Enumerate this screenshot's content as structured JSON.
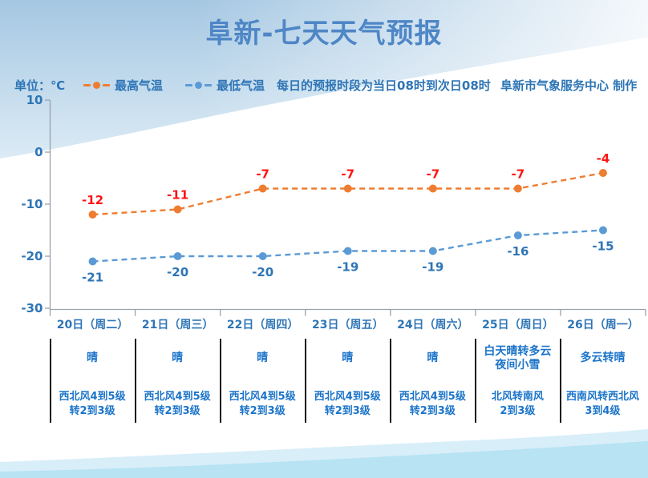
{
  "title": "阜新-七天天气预报",
  "header": {
    "unit_label": "单位：℃",
    "period_note": "每日的预报时段为当日08时到次日08时",
    "credit": "阜新市气象服务中心 制作"
  },
  "chart_data": {
    "type": "line",
    "title": "阜新-七天天气预报",
    "ylabel": "单位：℃",
    "ylim": [
      -30,
      10
    ],
    "yticks": [
      10,
      0,
      -10,
      -20,
      -30
    ],
    "grid": false,
    "line_style": "dashed",
    "legend_position": "top-left",
    "categories": [
      "20日（周二）",
      "21日（周三）",
      "22日（周四）",
      "23日（周五）",
      "24日（周六）",
      "25日（周日）",
      "26日（周一）"
    ],
    "series": [
      {
        "name": "最高气温",
        "color": "#ED7D31",
        "label_color": "#FF1414",
        "label_position": "above",
        "values": [
          -12,
          -11,
          -7,
          -7,
          -7,
          -7,
          -4
        ]
      },
      {
        "name": "最低气温",
        "color": "#5B9BD5",
        "label_color": "#2E75B6",
        "label_position": "below",
        "values": [
          -21,
          -20,
          -20,
          -19,
          -19,
          -16,
          -15
        ]
      }
    ]
  },
  "forecast_table": {
    "columns": [
      {
        "day": "20日（周二）",
        "condition": "晴",
        "wind": "西北风4到5级\n转2到3级"
      },
      {
        "day": "21日（周三）",
        "condition": "晴",
        "wind": "西北风4到5级\n转2到3级"
      },
      {
        "day": "22日（周四）",
        "condition": "晴",
        "wind": "西北风4到5级\n转2到3级"
      },
      {
        "day": "23日（周五）",
        "condition": "晴",
        "wind": "西北风4到5级\n转2到3级"
      },
      {
        "day": "24日（周六）",
        "condition": "晴",
        "wind": "西北风4到5级\n转2到3级"
      },
      {
        "day": "25日（周日）",
        "condition": "白天晴转多云\n夜间小雪",
        "wind": "北风转南风\n2到3级"
      },
      {
        "day": "26日（周一）",
        "condition": "多云转晴",
        "wind": "西南风转西北风\n3到4级"
      }
    ]
  },
  "colors": {
    "title": "#4E86C6",
    "text_blue": "#2E75B6",
    "table_text": "#1B74C9",
    "high_series": "#ED7D31",
    "low_series": "#5B9BD5",
    "high_label": "#FF1414",
    "low_label": "#2E75B6",
    "axis": "#98A2AB",
    "divider": "#1A1A1A",
    "bg_top_blue": "#A5C7E2",
    "bg_wave_light": "#D8EEF9",
    "bg_wave_deep": "#B7E3F3"
  }
}
